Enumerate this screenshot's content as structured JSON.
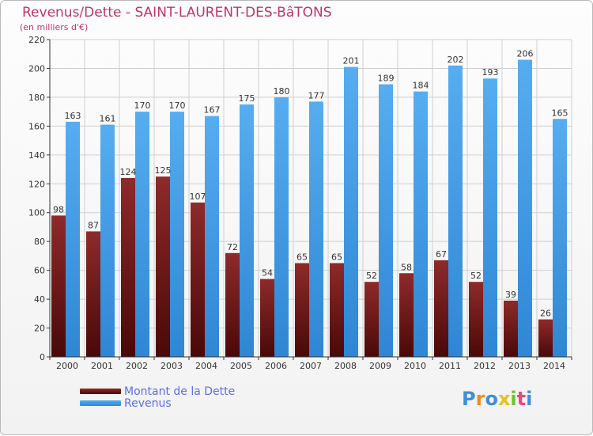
{
  "header": {
    "title": "Revenus/Dette - SAINT-LAURENT-DES-BâTONS",
    "subtitle": "(en milliers d'€)"
  },
  "legend": {
    "dette_label": "Montant de la Dette",
    "revenus_label": "Revenus"
  },
  "logo": {
    "letters": [
      "P",
      "r",
      "o",
      "x",
      "i",
      "t",
      "i"
    ]
  },
  "colors": {
    "title": "#c0356c",
    "dette": "#7a1e1e",
    "revenus": "#4a9fe6",
    "legend_text": "#5a6ee6"
  },
  "chart_data": {
    "type": "bar",
    "categories": [
      "2000",
      "2001",
      "2002",
      "2003",
      "2004",
      "2005",
      "2006",
      "2007",
      "2008",
      "2009",
      "2010",
      "2011",
      "2012",
      "2013",
      "2014"
    ],
    "series": [
      {
        "name": "Montant de la Dette",
        "values": [
          98,
          87,
          124,
          125,
          107,
          72,
          54,
          65,
          65,
          52,
          58,
          67,
          52,
          39,
          26
        ]
      },
      {
        "name": "Revenus",
        "values": [
          163,
          161,
          170,
          170,
          167,
          175,
          180,
          177,
          201,
          189,
          184,
          202,
          193,
          206,
          165
        ]
      }
    ],
    "ylim": [
      0,
      220
    ],
    "yticks": [
      0,
      20,
      40,
      60,
      80,
      100,
      120,
      140,
      160,
      180,
      200,
      220
    ],
    "grid": true,
    "legend_position": "bottom-left"
  }
}
